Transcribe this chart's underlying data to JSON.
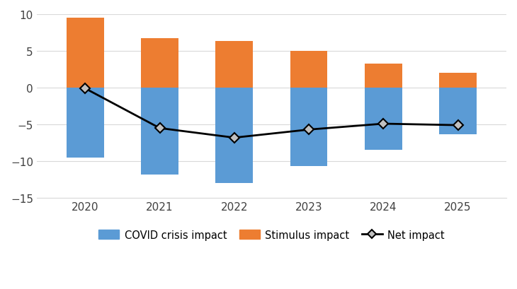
{
  "years": [
    2020,
    2021,
    2022,
    2023,
    2024,
    2025
  ],
  "covid_impact": [
    -9.5,
    -11.8,
    -13.0,
    -10.7,
    -8.5,
    -6.3
  ],
  "stimulus_impact": [
    9.5,
    6.7,
    6.3,
    5.0,
    3.3,
    2.0
  ],
  "net_impact": [
    -0.1,
    -5.5,
    -6.8,
    -5.7,
    -4.9,
    -5.1
  ],
  "covid_color": "#5B9BD5",
  "stimulus_color": "#ED7D31",
  "net_color": "#000000",
  "ylim": [
    -15,
    10
  ],
  "yticks": [
    -15,
    -10,
    -5,
    0,
    5,
    10
  ],
  "bar_width": 0.5,
  "legend_labels": [
    "COVID crisis impact",
    "Stimulus impact",
    "Net impact"
  ],
  "background_color": "#ffffff",
  "grid_color": "#d9d9d9"
}
